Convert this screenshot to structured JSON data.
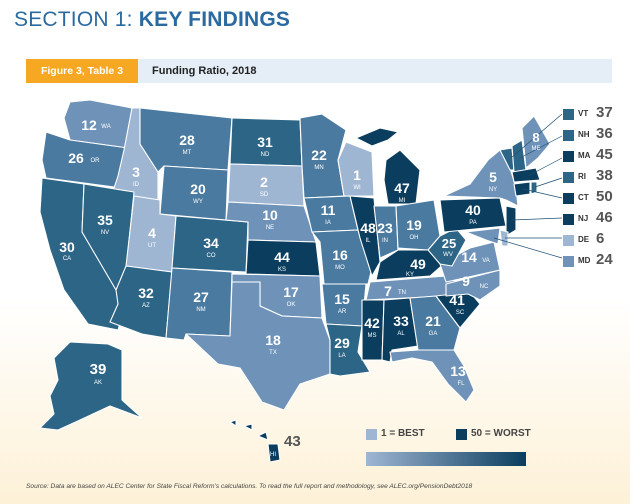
{
  "header": {
    "section_prefix": "SECTION 1:",
    "section_title": "KEY FINDINGS",
    "figure_tab": "Figure 3, Table 3",
    "figure_caption": "Funding Ratio, 2018"
  },
  "colors": {
    "shade1": "#9fb6d3",
    "shade2": "#6f93b8",
    "shade3": "#4a7aa0",
    "shade4": "#2d6587",
    "shade5": "#0b3d5e",
    "tab": "#f7a823",
    "title": "#2a6aa0"
  },
  "states": {
    "WA": {
      "rank": "12",
      "abbr": "WA"
    },
    "OR": {
      "rank": "26",
      "abbr": "OR"
    },
    "CA": {
      "rank": "30",
      "abbr": "CA"
    },
    "ID": {
      "rank": "3",
      "abbr": "ID"
    },
    "NV": {
      "rank": "35",
      "abbr": "NV"
    },
    "MT": {
      "rank": "28",
      "abbr": "MT"
    },
    "WY": {
      "rank": "20",
      "abbr": "WY"
    },
    "UT": {
      "rank": "4",
      "abbr": "UT"
    },
    "AZ": {
      "rank": "32",
      "abbr": "AZ"
    },
    "CO": {
      "rank": "34",
      "abbr": "CO"
    },
    "NM": {
      "rank": "27",
      "abbr": "NM"
    },
    "ND": {
      "rank": "31",
      "abbr": "ND"
    },
    "SD": {
      "rank": "2",
      "abbr": "SD"
    },
    "NE": {
      "rank": "10",
      "abbr": "NE"
    },
    "KS": {
      "rank": "44",
      "abbr": "KS"
    },
    "OK": {
      "rank": "17",
      "abbr": "OK"
    },
    "TX": {
      "rank": "18",
      "abbr": "TX"
    },
    "MN": {
      "rank": "22",
      "abbr": "MN"
    },
    "IA": {
      "rank": "11",
      "abbr": "IA"
    },
    "MO": {
      "rank": "16",
      "abbr": "MO"
    },
    "AR": {
      "rank": "15",
      "abbr": "AR"
    },
    "LA": {
      "rank": "29",
      "abbr": "LA"
    },
    "WI": {
      "rank": "1",
      "abbr": "WI"
    },
    "IL": {
      "rank": "48",
      "abbr": "IL"
    },
    "MI": {
      "rank": "47",
      "abbr": "MI"
    },
    "IN": {
      "rank": "23",
      "abbr": "IN"
    },
    "OH": {
      "rank": "19",
      "abbr": "OH"
    },
    "KY": {
      "rank": "49",
      "abbr": "KY"
    },
    "TN": {
      "rank": "7",
      "abbr": "TN"
    },
    "MS": {
      "rank": "42",
      "abbr": "MS"
    },
    "AL": {
      "rank": "33",
      "abbr": "AL"
    },
    "GA": {
      "rank": "21",
      "abbr": "GA"
    },
    "FL": {
      "rank": "13",
      "abbr": "FL"
    },
    "SC": {
      "rank": "41",
      "abbr": "SC"
    },
    "NC": {
      "rank": "9",
      "abbr": "NC"
    },
    "VA": {
      "rank": "14",
      "abbr": "VA"
    },
    "WV": {
      "rank": "25",
      "abbr": "WV"
    },
    "PA": {
      "rank": "40",
      "abbr": "PA"
    },
    "NY": {
      "rank": "5",
      "abbr": "NY"
    },
    "ME": {
      "rank": "8",
      "abbr": "ME"
    },
    "AK": {
      "rank": "39",
      "abbr": "AK"
    },
    "HI": {
      "rank": "43",
      "abbr": "HI"
    }
  },
  "northeast": [
    {
      "abbr": "VT",
      "rank": "37"
    },
    {
      "abbr": "NH",
      "rank": "36"
    },
    {
      "abbr": "MA",
      "rank": "45"
    },
    {
      "abbr": "RI",
      "rank": "38"
    },
    {
      "abbr": "CT",
      "rank": "50"
    },
    {
      "abbr": "NJ",
      "rank": "46"
    },
    {
      "abbr": "DE",
      "rank": "6"
    },
    {
      "abbr": "MD",
      "rank": "24"
    }
  ],
  "legend": {
    "best_label": "1 = BEST",
    "worst_label": "50 = WORST"
  },
  "footnote": "Source: Data are based on ALEC Center for State Fiscal Reform’s calculations. To read the full report and methodology, see ALEC.org/PensionDebt2018"
}
